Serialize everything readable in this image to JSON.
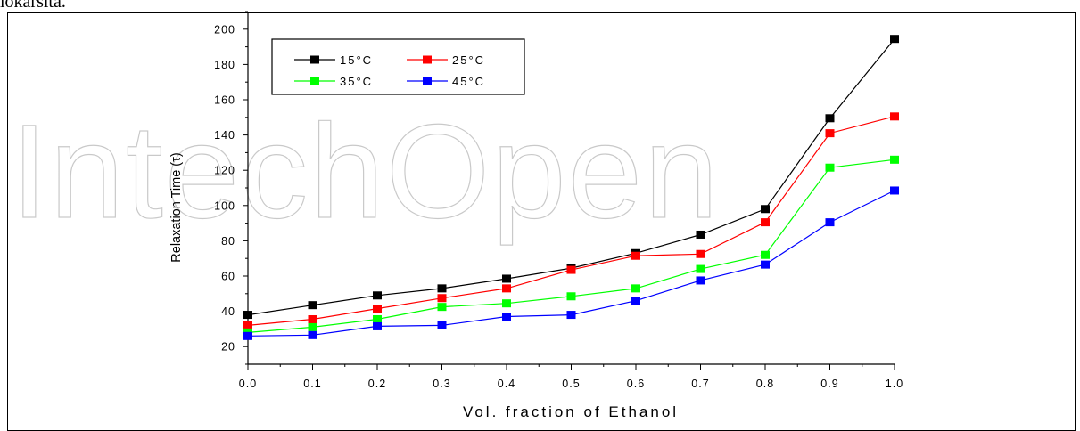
{
  "page": {
    "top_text": "lokarsita.",
    "watermark": "IntechOpen"
  },
  "chart_data": {
    "type": "line",
    "xlabel": "Vol. fraction of Ethanol",
    "ylabel": "Relaxation Time (τ)",
    "xlim": [
      0.0,
      1.0
    ],
    "ylim": [
      10,
      210
    ],
    "x_ticks": [
      "0.0",
      "0.1",
      "0.2",
      "0.3",
      "0.4",
      "0.5",
      "0.6",
      "0.7",
      "0.8",
      "0.9",
      "1.0"
    ],
    "y_ticks": [
      "20",
      "40",
      "60",
      "80",
      "100",
      "120",
      "140",
      "160",
      "180",
      "200"
    ],
    "x": [
      0.0,
      0.1,
      0.2,
      0.3,
      0.4,
      0.5,
      0.6,
      0.7,
      0.8,
      0.9,
      1.0
    ],
    "legend_position": "top-left",
    "grid": false,
    "series": [
      {
        "name": "15°C",
        "color": "#000000",
        "marker": "square",
        "values": [
          38,
          43.5,
          49,
          53,
          58.5,
          64.5,
          73,
          83.5,
          98,
          149.5,
          194.5
        ]
      },
      {
        "name": "25°C",
        "color": "#ff0000",
        "marker": "square",
        "values": [
          32,
          35.5,
          41.5,
          47.5,
          53,
          63.5,
          71.5,
          72.5,
          90.5,
          141,
          150.5
        ]
      },
      {
        "name": "35°C",
        "color": "#00ff00",
        "marker": "square",
        "values": [
          28,
          31,
          35.5,
          42.5,
          44.5,
          48.5,
          53,
          64,
          72,
          121.5,
          126
        ]
      },
      {
        "name": "45°C",
        "color": "#0000ff",
        "marker": "square",
        "values": [
          26,
          26.5,
          31.5,
          32,
          37,
          38,
          46,
          57.5,
          66.5,
          90.5,
          108.5
        ]
      }
    ]
  }
}
